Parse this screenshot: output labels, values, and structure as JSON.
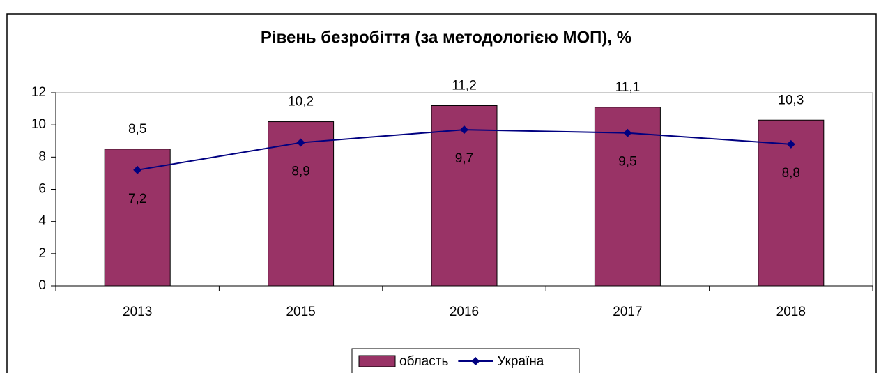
{
  "chart_data": {
    "type": "bar",
    "title": "Рівень безробіття (за методологією МОП), %",
    "categories": [
      "2013",
      "2015",
      "2016",
      "2017",
      "2018"
    ],
    "series": [
      {
        "name": "область",
        "type": "bar",
        "color": "#993366",
        "values": [
          8.5,
          10.2,
          11.2,
          11.1,
          10.3
        ],
        "value_labels": [
          "8,5",
          "10,2",
          "11,2",
          "11,1",
          "10,3"
        ]
      },
      {
        "name": "Україна",
        "type": "line",
        "color": "#000080",
        "values": [
          7.2,
          8.9,
          9.7,
          9.5,
          8.8
        ],
        "value_labels": [
          "7,2",
          "8,9",
          "9,7",
          "9,5",
          "8,8"
        ]
      }
    ],
    "ylim": [
      0,
      12
    ],
    "yticks": [
      0,
      2,
      4,
      6,
      8,
      10,
      12
    ],
    "legend": "bottom"
  }
}
